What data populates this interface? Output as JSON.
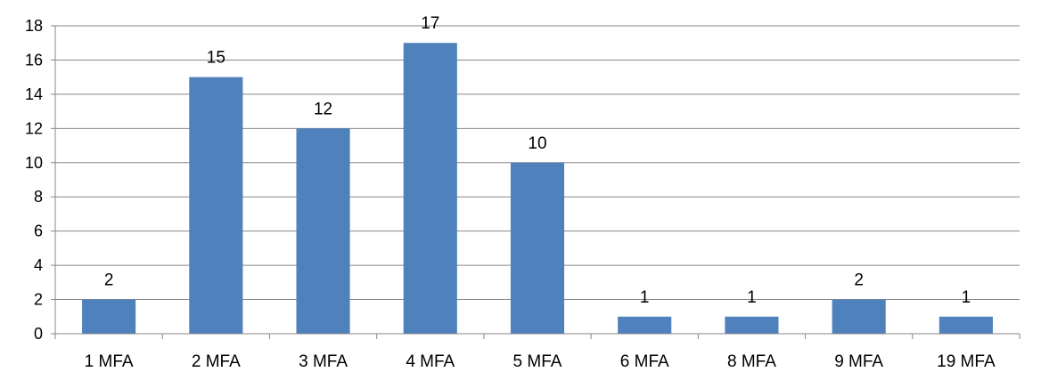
{
  "chart_data": {
    "type": "bar",
    "title": "",
    "xlabel": "",
    "ylabel": "",
    "categories": [
      "1 MFA",
      "2 MFA",
      "3 MFA",
      "4 MFA",
      "5 MFA",
      "6 MFA",
      "8 MFA",
      "9 MFA",
      "19 MFA"
    ],
    "values": [
      2,
      15,
      12,
      17,
      10,
      1,
      1,
      2,
      1
    ],
    "ylim": [
      0,
      18
    ],
    "yticks": [
      0,
      2,
      4,
      6,
      8,
      10,
      12,
      14,
      16,
      18
    ],
    "grid": true,
    "legend": "none",
    "bar_color": "#4F81BD",
    "grid_color": "#878787",
    "axis_color": "#878787"
  }
}
